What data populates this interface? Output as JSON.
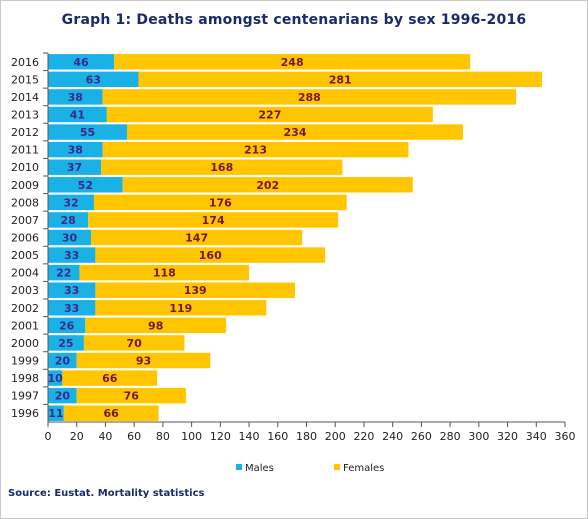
{
  "chart_data": {
    "type": "bar",
    "orientation": "horizontal",
    "stacked": true,
    "title": "Graph 1: Deaths amongst centenarians by sex 1996-2016",
    "categories": [
      "2016",
      "2015",
      "2014",
      "2013",
      "2012",
      "2011",
      "2010",
      "2009",
      "2008",
      "2007",
      "2006",
      "2005",
      "2004",
      "2003",
      "2002",
      "2001",
      "2000",
      "1999",
      "1998",
      "1997",
      "1996"
    ],
    "series": [
      {
        "name": "Males",
        "color": "#1ab2e6",
        "label_color": "#3a2a8c",
        "values": [
          46,
          63,
          38,
          41,
          55,
          38,
          37,
          52,
          32,
          28,
          30,
          33,
          22,
          33,
          33,
          26,
          25,
          20,
          10,
          20,
          11
        ]
      },
      {
        "name": "Females",
        "color": "#ffc600",
        "label_color": "#7a1430",
        "values": [
          248,
          281,
          288,
          227,
          234,
          213,
          168,
          202,
          176,
          174,
          147,
          160,
          118,
          139,
          119,
          98,
          70,
          93,
          66,
          76,
          66
        ]
      }
    ],
    "xlim": [
      0,
      360
    ],
    "xticks": [
      0,
      20,
      40,
      60,
      80,
      100,
      120,
      140,
      160,
      180,
      200,
      220,
      240,
      260,
      280,
      300,
      320,
      340,
      360
    ],
    "grid": false,
    "legend_position": "bottom"
  },
  "source": "Source: Eustat. Mortality statistics"
}
